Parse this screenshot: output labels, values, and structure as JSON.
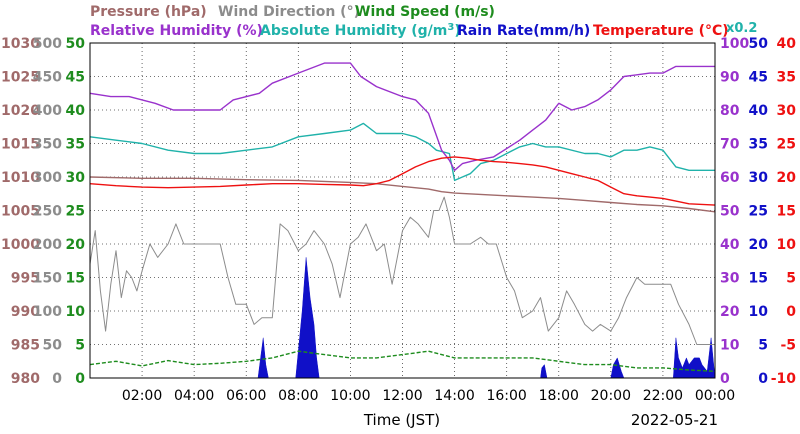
{
  "header": {
    "row1": [
      {
        "text": "Pressure (hPa)",
        "color": "#a06a6a"
      },
      {
        "text": "Wind Direction (°)",
        "color": "#8c8c8c"
      },
      {
        "text": "Wind Speed (m/s)",
        "color": "#1e8c1e"
      }
    ],
    "row2": [
      {
        "text": "Relative Humidity (%)",
        "color": "#9932cc"
      },
      {
        "text": "Absolute Humidity (g/m",
        "color": "#20b2aa"
      },
      {
        "text": "Rain Rate(mm/h)",
        "color": "#1010c8"
      },
      {
        "text": "Temperature (°C)",
        "color": "#ee1111"
      }
    ],
    "abs_hum_superscript": "3",
    "abs_hum_close": ")",
    "scale_note": "x0.2"
  },
  "axes": {
    "pressure_ticks": [
      "1030",
      "1025",
      "1020",
      "1015",
      "1010",
      "1005",
      "1000",
      "995",
      "990",
      "985",
      "980"
    ],
    "direction_ticks": [
      "500",
      "450",
      "400",
      "350",
      "300",
      "250",
      "200",
      "150",
      "100",
      "50",
      "0"
    ],
    "speed_ticks": [
      "50",
      "45",
      "40",
      "35",
      "30",
      "25",
      "20",
      "15",
      "10",
      "5",
      "0"
    ],
    "humidity_ticks": [
      "100",
      "90",
      "80",
      "70",
      "60",
      "50",
      "40",
      "30",
      "20",
      "10",
      "0"
    ],
    "rain_ticks": [
      "50",
      "45",
      "40",
      "35",
      "30",
      "25",
      "20",
      "15",
      "10",
      "5",
      "0"
    ],
    "temp_ticks": [
      "40",
      "35",
      "30",
      "25",
      "20",
      "15",
      "10",
      "5",
      "0",
      "-5",
      "-10"
    ],
    "x_ticks": [
      "02:00",
      "04:00",
      "06:00",
      "08:00",
      "10:00",
      "12:00",
      "14:00",
      "16:00",
      "18:00",
      "20:00",
      "22:00",
      "00:00"
    ],
    "xlabel": "Time (JST)",
    "date": "2022-05-21"
  },
  "chart_data": {
    "type": "line",
    "x_range": [
      "00:00",
      "24:00"
    ],
    "grid": true,
    "series": [
      {
        "name": "Relative Humidity (%)",
        "color": "#9932cc",
        "axis": "humidity",
        "x": [
          0,
          0.8,
          1.5,
          2.5,
          3.2,
          4.0,
          5.0,
          5.5,
          6.5,
          7.0,
          8.0,
          9.0,
          9.5,
          10.0,
          10.4,
          11.0,
          12.0,
          12.5,
          13.0,
          13.5,
          13.8,
          14.0,
          14.3,
          14.8,
          15.5,
          16.5,
          17.0,
          17.5,
          18.0,
          18.5,
          19.0,
          19.5,
          20.0,
          20.5,
          21.5,
          22.0,
          22.5,
          23.5,
          24.0
        ],
        "values": [
          85,
          84,
          84,
          82,
          80,
          80,
          80,
          83,
          85,
          88,
          91,
          94,
          94,
          94,
          90,
          87,
          84,
          83,
          79,
          68,
          65,
          62,
          64,
          65,
          66,
          71,
          74,
          77,
          82,
          80,
          81,
          83,
          86,
          90,
          91,
          91,
          93,
          93,
          93
        ]
      },
      {
        "name": "Absolute Humidity (g/m3)",
        "color": "#20b2aa",
        "axis": "humidity",
        "note": "plotted x0.2",
        "x": [
          0,
          1.0,
          2.0,
          3.0,
          4.0,
          5.0,
          6.0,
          7.0,
          8.0,
          9.0,
          10.0,
          10.5,
          11.0,
          11.5,
          12.0,
          12.5,
          13.0,
          13.3,
          13.8,
          14.0,
          14.3,
          14.6,
          15.0,
          15.5,
          16.0,
          16.5,
          17.0,
          17.5,
          18.0,
          19.0,
          19.5,
          20.0,
          20.5,
          21.0,
          21.5,
          22.0,
          22.5,
          23.0,
          24.0
        ],
        "values": [
          72,
          71,
          70,
          68,
          67,
          67,
          68,
          69,
          72,
          73,
          74,
          76,
          73,
          73,
          73,
          72,
          70,
          68,
          67,
          59,
          60,
          61,
          64,
          65,
          67,
          69,
          70,
          69,
          69,
          67,
          67,
          66,
          68,
          68,
          69,
          68,
          63,
          62,
          62
        ]
      },
      {
        "name": "Temperature (°C)",
        "color": "#ee1111",
        "axis": "temperature",
        "x": [
          0,
          1.0,
          2.0,
          3.0,
          4.0,
          5.0,
          6.0,
          7.0,
          8.0,
          9.0,
          10.0,
          10.5,
          11.0,
          11.5,
          12.0,
          12.5,
          13.0,
          13.5,
          14.0,
          14.5,
          15.0,
          15.5,
          16.0,
          16.5,
          17.0,
          17.5,
          18.0,
          18.5,
          19.0,
          19.5,
          20.0,
          20.5,
          21.0,
          21.5,
          22.0,
          22.5,
          23.0,
          24.0
        ],
        "values": [
          19,
          18.7,
          18.5,
          18.4,
          18.5,
          18.6,
          18.8,
          19,
          19,
          18.9,
          18.8,
          18.7,
          19,
          19.5,
          20.5,
          21.5,
          22.3,
          22.8,
          23,
          22.8,
          22.5,
          22.3,
          22.2,
          22,
          21.8,
          21.5,
          21,
          20.5,
          20,
          19.5,
          18.5,
          17.5,
          17.2,
          17,
          16.8,
          16.4,
          16,
          15.8
        ]
      },
      {
        "name": "Pressure (hPa)",
        "color": "#a06a6a",
        "axis": "pressure",
        "x": [
          0,
          2.0,
          4.0,
          6.0,
          8.0,
          10.0,
          11.0,
          12.0,
          13.0,
          13.5,
          14.0,
          15.0,
          16.0,
          17.0,
          18.0,
          19.0,
          20.0,
          21.0,
          22.0,
          23.0,
          24.0
        ],
        "values": [
          1010,
          1009.8,
          1009.8,
          1009.6,
          1009.5,
          1009.2,
          1009,
          1008.6,
          1008.2,
          1007.8,
          1007.6,
          1007.4,
          1007.2,
          1007,
          1006.8,
          1006.5,
          1006.2,
          1005.9,
          1005.7,
          1005.3,
          1004.8
        ]
      },
      {
        "name": "Wind Direction (°)",
        "color": "#8c8c8c",
        "axis": "direction",
        "x": [
          0,
          0.2,
          0.4,
          0.6,
          0.8,
          1.0,
          1.2,
          1.4,
          1.6,
          1.8,
          2.0,
          2.3,
          2.6,
          3.0,
          3.3,
          3.6,
          4.0,
          4.3,
          4.6,
          5.0,
          5.3,
          5.6,
          6.0,
          6.3,
          6.6,
          7.0,
          7.3,
          7.6,
          8.0,
          8.3,
          8.6,
          9.0,
          9.3,
          9.6,
          10.0,
          10.3,
          10.6,
          11.0,
          11.3,
          11.6,
          12.0,
          12.3,
          12.6,
          13.0,
          13.2,
          13.4,
          13.6,
          13.8,
          14.0,
          14.3,
          14.6,
          15.0,
          15.3,
          15.6,
          16.0,
          16.3,
          16.6,
          17.0,
          17.3,
          17.6,
          18.0,
          18.3,
          18.6,
          19.0,
          19.3,
          19.6,
          20.0,
          20.3,
          20.6,
          21.0,
          21.3,
          21.6,
          22.0,
          22.3,
          22.6,
          23.0,
          23.3,
          23.6,
          24.0
        ],
        "values": [
          170,
          220,
          130,
          70,
          140,
          190,
          120,
          160,
          150,
          130,
          160,
          200,
          180,
          200,
          230,
          200,
          200,
          200,
          200,
          200,
          150,
          110,
          110,
          80,
          90,
          90,
          230,
          220,
          190,
          200,
          220,
          200,
          170,
          120,
          200,
          210,
          230,
          190,
          200,
          140,
          220,
          240,
          230,
          210,
          250,
          250,
          270,
          240,
          200,
          200,
          200,
          210,
          200,
          200,
          150,
          130,
          90,
          100,
          120,
          70,
          90,
          130,
          110,
          80,
          70,
          80,
          70,
          90,
          120,
          150,
          140,
          140,
          140,
          140,
          110,
          80,
          50,
          50,
          50
        ]
      },
      {
        "name": "Wind Speed (m/s)",
        "color": "#1e8c1e",
        "axis": "speed",
        "x": [
          0,
          1.0,
          2.0,
          3.0,
          4.0,
          5.0,
          6.0,
          7.0,
          8.0,
          9.0,
          10.0,
          11.0,
          12.0,
          13.0,
          14.0,
          15.0,
          16.0,
          17.0,
          18.0,
          19.0,
          20.0,
          21.0,
          22.0,
          23.0,
          24.0
        ],
        "values": [
          2,
          2.5,
          1.8,
          2.6,
          2,
          2.2,
          2.5,
          3,
          4,
          3.5,
          3,
          3,
          3.5,
          4,
          3,
          3,
          3,
          3,
          2.5,
          2,
          2,
          1.5,
          1.5,
          1.2,
          1
        ]
      },
      {
        "name": "Rain Rate(mm/h)",
        "color": "#1010c8",
        "axis": "rain",
        "fill": true,
        "x": [
          0,
          6.45,
          6.55,
          6.65,
          6.75,
          6.85,
          7.9,
          8.0,
          8.15,
          8.3,
          8.45,
          8.6,
          8.7,
          8.8,
          9.0,
          17.3,
          17.35,
          17.45,
          17.55,
          20.0,
          20.1,
          20.25,
          20.4,
          20.5,
          22.4,
          22.5,
          22.6,
          22.75,
          22.9,
          23.0,
          23.2,
          23.4,
          23.5,
          23.7,
          23.85,
          24.0
        ],
        "values": [
          0,
          0,
          3,
          6,
          2,
          0,
          0,
          4,
          10,
          18,
          12,
          8,
          3,
          0,
          0,
          0,
          1.5,
          2,
          0,
          0,
          2,
          3,
          1,
          0,
          0,
          6,
          3,
          1.5,
          3,
          2,
          3,
          3,
          2,
          1,
          6,
          0
        ]
      }
    ]
  }
}
